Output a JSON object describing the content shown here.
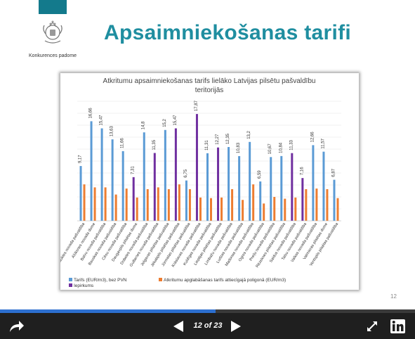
{
  "slide": {
    "title": "Apsaimniekošanas tarifi",
    "logo_text": "Konkurences padome",
    "page_number": "12"
  },
  "viewer": {
    "counter_text": "12 of 23",
    "progress": 0.52
  },
  "colors": {
    "teal": "#137a8c",
    "title": "#1f8ea0",
    "series_tariff": "#5b9bd5",
    "series_poligons": "#ed7d31",
    "series_highlight": "#7030a0"
  },
  "chart_data": {
    "type": "bar",
    "title": "Atkritumu apsaimniekošanas  tarifs lielāko Latvijas pilsētu pašvaldību teritorijās",
    "title_lines": [
      "Atkritumu apsaimniekošanas  tarifs lielāko Latvijas pilsētu pašvaldību",
      "teritorijās"
    ],
    "categories": [
      "Aizkraukles novada pašvaldība",
      "Alūksnes novada dome",
      "Balvu novada pašvaldība",
      "Bauskas novada pašvaldība",
      "Cēsu novada pašvaldība",
      "Daugavpils pilsētas dome",
      "Dobeles novada pašvaldība",
      "Gulbenes novada pašvaldība",
      "Jelgavas pilsētas pašvaldība",
      "Jēkabpils pilsētas pašvaldība",
      "Jūrmalas pilsētas pašvaldība",
      "Krāslavas novada pašvaldība",
      "Kuldīgas novada pašvaldība",
      "Liepājas pilsētas pašvaldība",
      "Limbažu novada pašvaldība",
      "Ludzas novada pašvaldība",
      "Madonas novada pašvaldība",
      "Ogres novada pašvaldība",
      "Preiļu novada pašvaldība",
      "Rēzeknes pilsētas pašvaldība",
      "Saldus novada pašvaldība",
      "Talsu novada pašvaldība",
      "Valkas novada pašvaldība",
      "Valmieras pilsētas dome",
      "Ventspils pilsētas pašvaldība"
    ],
    "series": [
      {
        "name": "Tarifs (EUR/m3), bez PVN",
        "values": [
          9.17,
          16.66,
          15.47,
          13.63,
          11.66,
          7.31,
          14.8,
          11.35,
          15.2,
          15.47,
          6.75,
          17.87,
          11.31,
          12.27,
          12.35,
          10.83,
          13.2,
          6.59,
          10.67,
          10.84,
          11.33,
          7.16,
          12.66,
          11.57,
          6.87
        ],
        "labels": [
          "9,17",
          "16,66",
          "15,47",
          "13,63",
          "11,66",
          "7,31",
          "14,8",
          "11,35",
          "15,2",
          "15,47",
          "6,75",
          "17,87",
          "11,31",
          "12,27",
          "12,35",
          "10,83",
          "13,2",
          "6,59",
          "10,67",
          "10,84",
          "11,33",
          "7,16",
          "12,66",
          "11,57",
          "6,87"
        ],
        "highlighted": [
          5,
          7,
          9,
          11,
          13,
          20,
          21
        ]
      },
      {
        "name": "Atkritumu apglabāšanas tarifs attiecīgajā poligonā (EUR/m3)",
        "values": [
          6.1,
          5.6,
          5.6,
          4.4,
          5.4,
          3.9,
          5.3,
          5.6,
          5.3,
          6.1,
          5.3,
          3.9,
          3.8,
          3.9,
          5.3,
          3.5,
          6.1,
          2.9,
          4.0,
          3.7,
          3.9,
          5.3,
          5.4,
          5.3,
          3.8
        ]
      }
    ],
    "legend": [
      "Tarifs (EUR/m3), bez PVN",
      "Atkritumu apglabāšanas tarifs attiecīgajā poligonā (EUR/m3)",
      "Iepirkums"
    ],
    "legend_position": "bottom",
    "ylim": [
      0,
      20
    ],
    "grid": true
  }
}
